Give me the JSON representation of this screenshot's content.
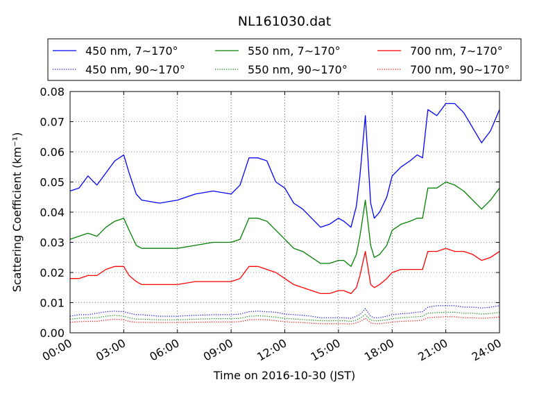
{
  "chart_data": {
    "type": "line",
    "title": "NL161030.dat",
    "xlabel": "Time on 2016-10-30 (JST)",
    "ylabel": "Scattering Coefficient (km⁻¹)",
    "xlim": [
      "00:00",
      "24:00"
    ],
    "ylim": [
      0,
      0.08
    ],
    "x_ticks": [
      "00:00",
      "03:00",
      "06:00",
      "09:00",
      "12:00",
      "15:00",
      "18:00",
      "21:00",
      "24:00"
    ],
    "y_ticks": [
      "0.00",
      "0.01",
      "0.02",
      "0.03",
      "0.04",
      "0.05",
      "0.06",
      "0.07",
      "0.08"
    ],
    "grid": true,
    "legend_position": "top, above plot",
    "x_hours": [
      0,
      0.5,
      1,
      1.5,
      2,
      2.5,
      3,
      3.3,
      3.7,
      4,
      5,
      6,
      7,
      8,
      9,
      9.5,
      10,
      10.5,
      11,
      11.5,
      12,
      12.5,
      13,
      13.5,
      14,
      14.5,
      15,
      15.3,
      15.7,
      16,
      16.2,
      16.5,
      16.8,
      17,
      17.3,
      17.7,
      18,
      18.5,
      19,
      19.4,
      19.7,
      20,
      20.5,
      21,
      21.5,
      22,
      22.5,
      23,
      23.5,
      24
    ],
    "series": [
      {
        "name": "450 nm, 7∼170°",
        "color": "#0000ff",
        "style": "solid",
        "values": [
          0.047,
          0.048,
          0.052,
          0.049,
          0.053,
          0.057,
          0.059,
          0.053,
          0.046,
          0.044,
          0.043,
          0.044,
          0.046,
          0.047,
          0.046,
          0.049,
          0.058,
          0.058,
          0.057,
          0.05,
          0.048,
          0.043,
          0.041,
          0.038,
          0.035,
          0.036,
          0.038,
          0.037,
          0.035,
          0.042,
          0.052,
          0.072,
          0.043,
          0.038,
          0.04,
          0.045,
          0.052,
          0.055,
          0.057,
          0.059,
          0.058,
          0.074,
          0.072,
          0.076,
          0.076,
          0.073,
          0.068,
          0.063,
          0.067,
          0.074
        ]
      },
      {
        "name": "450 nm, 90∼170°",
        "color": "#0000ff",
        "style": "dotted",
        "values": [
          0.0055,
          0.006,
          0.006,
          0.0065,
          0.007,
          0.0072,
          0.007,
          0.0065,
          0.006,
          0.006,
          0.0055,
          0.0055,
          0.0058,
          0.006,
          0.006,
          0.0062,
          0.007,
          0.0072,
          0.007,
          0.0068,
          0.0062,
          0.006,
          0.0058,
          0.0055,
          0.005,
          0.005,
          0.005,
          0.005,
          0.0048,
          0.0055,
          0.006,
          0.008,
          0.0055,
          0.005,
          0.005,
          0.0055,
          0.006,
          0.0063,
          0.0065,
          0.0068,
          0.007,
          0.0085,
          0.009,
          0.009,
          0.009,
          0.0085,
          0.0085,
          0.0082,
          0.0085,
          0.009
        ]
      },
      {
        "name": "550 nm, 7∼170°",
        "color": "#008000",
        "style": "solid",
        "values": [
          0.031,
          0.032,
          0.033,
          0.032,
          0.035,
          0.037,
          0.038,
          0.034,
          0.029,
          0.028,
          0.028,
          0.028,
          0.029,
          0.03,
          0.03,
          0.031,
          0.038,
          0.038,
          0.037,
          0.034,
          0.031,
          0.028,
          0.027,
          0.025,
          0.023,
          0.023,
          0.024,
          0.024,
          0.022,
          0.026,
          0.032,
          0.044,
          0.029,
          0.025,
          0.026,
          0.029,
          0.034,
          0.036,
          0.037,
          0.038,
          0.038,
          0.048,
          0.048,
          0.05,
          0.049,
          0.047,
          0.044,
          0.041,
          0.044,
          0.048
        ]
      },
      {
        "name": "550 nm, 90∼170°",
        "color": "#008000",
        "style": "dotted",
        "values": [
          0.0045,
          0.0048,
          0.005,
          0.005,
          0.0055,
          0.0058,
          0.0055,
          0.005,
          0.0045,
          0.0045,
          0.0043,
          0.0043,
          0.0045,
          0.0047,
          0.0047,
          0.0048,
          0.0055,
          0.0056,
          0.0055,
          0.0052,
          0.0048,
          0.0046,
          0.0044,
          0.0042,
          0.004,
          0.004,
          0.004,
          0.004,
          0.0038,
          0.0042,
          0.0048,
          0.006,
          0.0042,
          0.004,
          0.004,
          0.0043,
          0.0047,
          0.005,
          0.0052,
          0.0053,
          0.0055,
          0.0065,
          0.0067,
          0.0068,
          0.0068,
          0.0065,
          0.0065,
          0.0062,
          0.0064,
          0.0068
        ]
      },
      {
        "name": "700 nm, 7∼170°",
        "color": "#ff0000",
        "style": "solid",
        "values": [
          0.018,
          0.018,
          0.019,
          0.019,
          0.021,
          0.022,
          0.022,
          0.019,
          0.017,
          0.016,
          0.016,
          0.016,
          0.017,
          0.017,
          0.017,
          0.018,
          0.022,
          0.022,
          0.021,
          0.02,
          0.018,
          0.016,
          0.015,
          0.014,
          0.013,
          0.013,
          0.014,
          0.014,
          0.013,
          0.015,
          0.019,
          0.027,
          0.016,
          0.015,
          0.016,
          0.018,
          0.02,
          0.021,
          0.021,
          0.021,
          0.021,
          0.027,
          0.027,
          0.028,
          0.027,
          0.027,
          0.026,
          0.024,
          0.025,
          0.027
        ]
      },
      {
        "name": "700 nm, 90∼170°",
        "color": "#ff0000",
        "style": "dotted",
        "values": [
          0.0035,
          0.0037,
          0.0038,
          0.0038,
          0.0042,
          0.0045,
          0.0043,
          0.0038,
          0.0035,
          0.0035,
          0.0034,
          0.0034,
          0.0035,
          0.0036,
          0.0036,
          0.0037,
          0.0043,
          0.0044,
          0.0043,
          0.004,
          0.0037,
          0.0035,
          0.0034,
          0.0032,
          0.003,
          0.003,
          0.003,
          0.003,
          0.0029,
          0.0033,
          0.0037,
          0.0048,
          0.0033,
          0.003,
          0.003,
          0.0033,
          0.0036,
          0.0038,
          0.0039,
          0.004,
          0.0042,
          0.005,
          0.0052,
          0.0053,
          0.0053,
          0.005,
          0.005,
          0.0048,
          0.005,
          0.0052
        ]
      }
    ]
  }
}
